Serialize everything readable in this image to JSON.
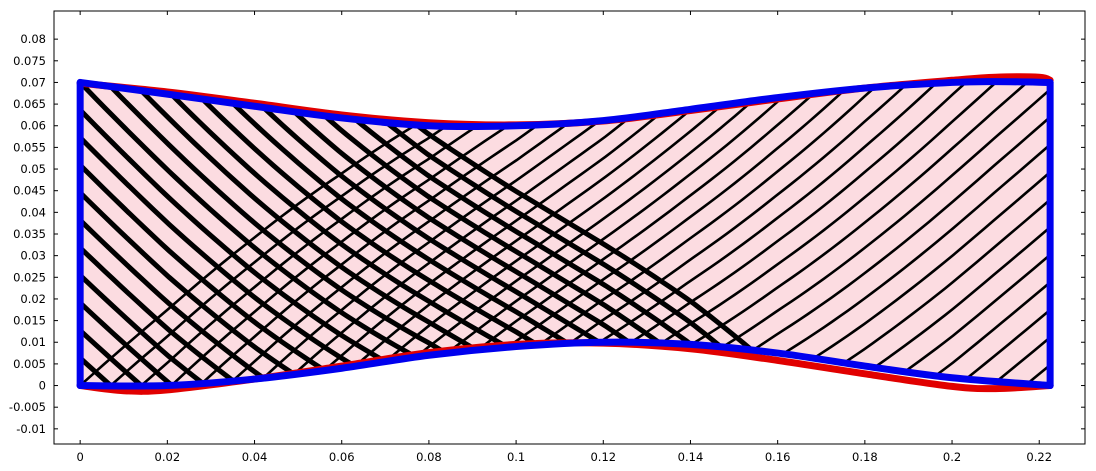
{
  "chart_data": {
    "type": "line",
    "title": "",
    "xlabel": "",
    "ylabel": "",
    "xlim": [
      -0.006,
      0.2305
    ],
    "ylim": [
      -0.0135,
      0.0865
    ],
    "x_ticks": [
      0,
      0.02,
      0.04,
      0.06,
      0.08,
      0.1,
      0.12,
      0.14,
      0.16,
      0.18,
      0.2,
      0.22
    ],
    "x_tick_labels": [
      "0",
      "0.02",
      "0.04",
      "0.06",
      "0.08",
      "0.1",
      "0.12",
      "0.14",
      "0.16",
      "0.18",
      "0.2",
      "0.22"
    ],
    "y_ticks": [
      -0.01,
      -0.005,
      0,
      0.005,
      0.01,
      0.015,
      0.02,
      0.025,
      0.03,
      0.035,
      0.04,
      0.045,
      0.05,
      0.055,
      0.06,
      0.065,
      0.07,
      0.075,
      0.08
    ],
    "y_tick_labels": [
      "-0.01",
      "-0.005",
      "0",
      "0.005",
      "0.01",
      "0.015",
      "0.02",
      "0.025",
      "0.03",
      "0.035",
      "0.04",
      "0.045",
      "0.05",
      "0.055",
      "0.06",
      "0.065",
      "0.07",
      "0.075",
      "0.08"
    ],
    "grid": false,
    "fill_color": "#fcdce1",
    "mesh_color": "#000000",
    "domain": {
      "x_start": 0,
      "x_end": 0.2225,
      "bottom_at_start": 0,
      "top_at_start": 0.07
    },
    "series": [
      {
        "color": "#e10000",
        "boundary": "top",
        "x": [
          0,
          0.02,
          0.04,
          0.06,
          0.08,
          0.1,
          0.12,
          0.14,
          0.16,
          0.18,
          0.2,
          0.21,
          0.22,
          0.2225
        ],
        "y": [
          0.0698,
          0.0678,
          0.0652,
          0.0625,
          0.0607,
          0.0602,
          0.0611,
          0.0635,
          0.0662,
          0.0687,
          0.0705,
          0.0712,
          0.0712,
          0.0705
        ]
      },
      {
        "color": "#e10000",
        "boundary": "bottom",
        "x": [
          0,
          0.01,
          0.02,
          0.04,
          0.06,
          0.08,
          0.1,
          0.12,
          0.14,
          0.16,
          0.18,
          0.2,
          0.21,
          0.2225
        ],
        "y": [
          0.0,
          -0.0012,
          -0.001,
          0.0015,
          0.0045,
          0.0076,
          0.0095,
          0.0098,
          0.0085,
          0.0058,
          0.0027,
          -0.0002,
          -0.0007,
          0.0
        ]
      },
      {
        "color": "#0000ee",
        "boundary": "top",
        "x": [
          0,
          0.02,
          0.04,
          0.06,
          0.08,
          0.1,
          0.12,
          0.14,
          0.16,
          0.18,
          0.2,
          0.21,
          0.2225
        ],
        "y": [
          0.07,
          0.0673,
          0.0645,
          0.0618,
          0.06,
          0.06,
          0.0612,
          0.0638,
          0.0665,
          0.0687,
          0.07,
          0.0702,
          0.07
        ]
      },
      {
        "color": "#0000ee",
        "boundary": "bottom",
        "x": [
          0,
          0.02,
          0.04,
          0.06,
          0.08,
          0.1,
          0.12,
          0.14,
          0.16,
          0.18,
          0.2,
          0.2225
        ],
        "y": [
          0.0,
          0.0,
          0.0015,
          0.004,
          0.007,
          0.009,
          0.01,
          0.0095,
          0.0075,
          0.0045,
          0.0018,
          0.0
        ]
      },
      {
        "color": "#0000ee",
        "boundary": "left",
        "x": [
          0,
          0
        ],
        "y": [
          0,
          0.07
        ]
      },
      {
        "color": "#0000ee",
        "boundary": "right",
        "x": [
          0.2225,
          0.2225
        ],
        "y": [
          0,
          0.07
        ]
      }
    ]
  }
}
